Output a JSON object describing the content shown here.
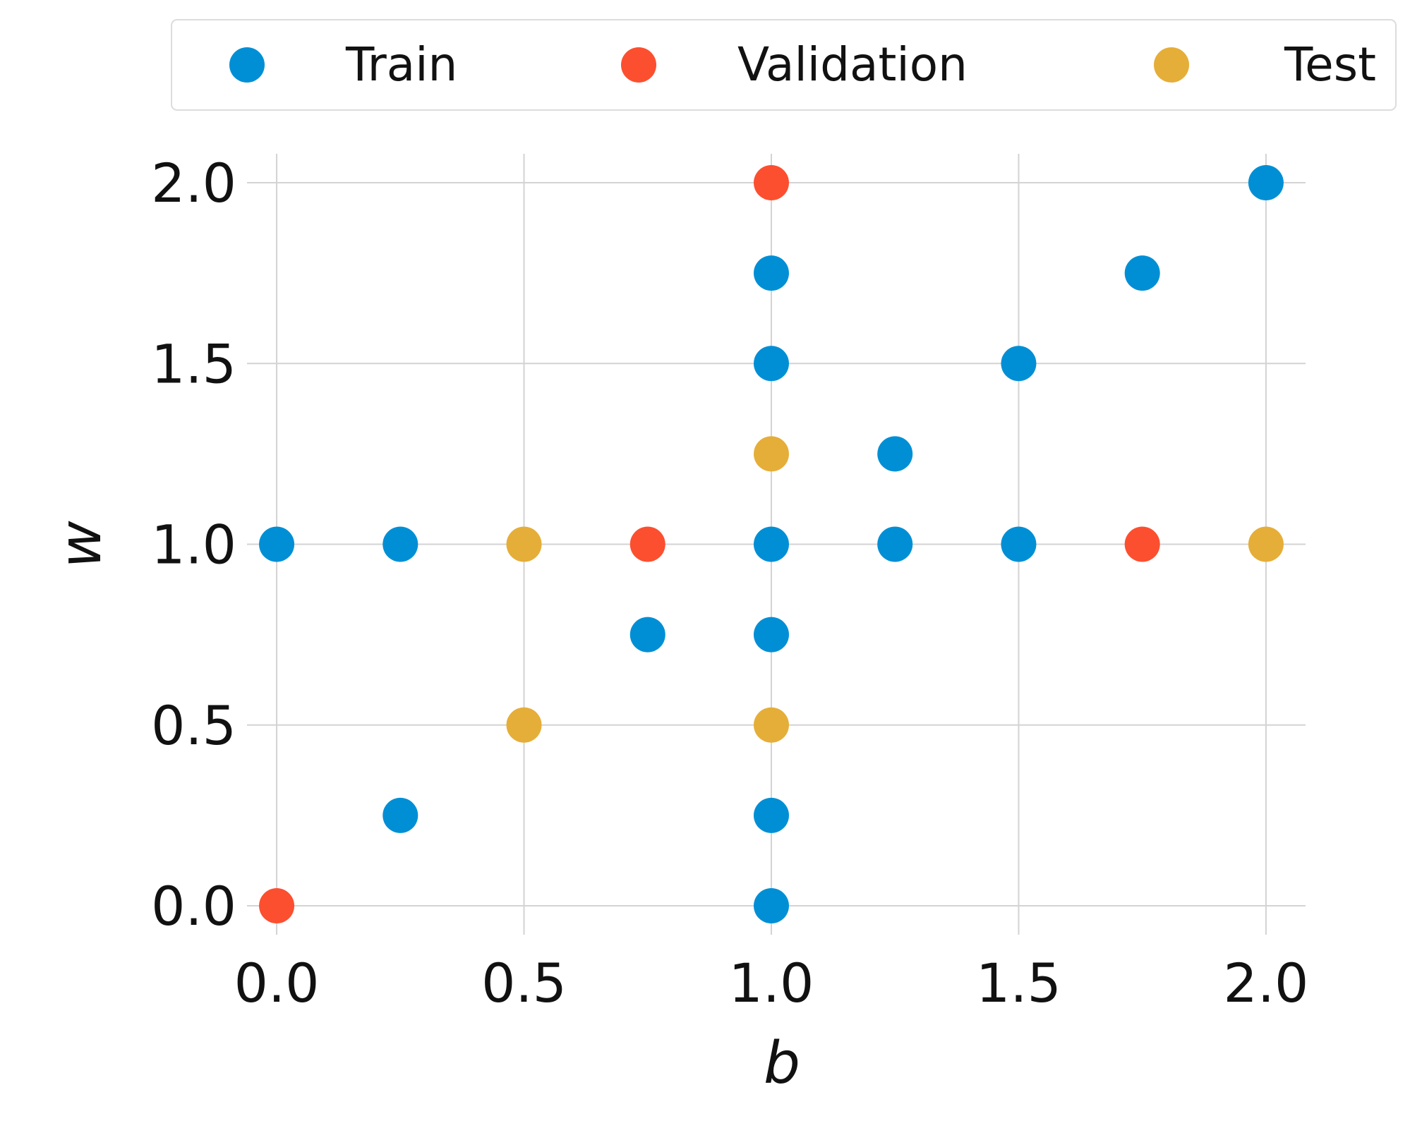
{
  "chart_data": {
    "type": "scatter",
    "title": "",
    "xlabel": "b",
    "ylabel": "w",
    "xlim": [
      -0.06,
      2.08
    ],
    "ylim": [
      -0.08,
      2.08
    ],
    "xticks": [
      0.0,
      0.5,
      1.0,
      1.5,
      2.0
    ],
    "yticks": [
      0.0,
      0.5,
      1.0,
      1.5,
      2.0
    ],
    "xtick_labels": [
      "0.0",
      "0.5",
      "1.0",
      "1.5",
      "2.0"
    ],
    "ytick_labels": [
      "0.0",
      "0.5",
      "1.0",
      "1.5",
      "2.0"
    ],
    "grid": true,
    "legend_position": "top",
    "series": [
      {
        "name": "Train",
        "color": "#008fd5",
        "points": [
          {
            "b": 0.0,
            "w": 1.0
          },
          {
            "b": 0.25,
            "w": 1.0
          },
          {
            "b": 0.25,
            "w": 0.25
          },
          {
            "b": 0.75,
            "w": 0.75
          },
          {
            "b": 1.0,
            "w": 1.75
          },
          {
            "b": 1.0,
            "w": 1.5
          },
          {
            "b": 1.0,
            "w": 1.0
          },
          {
            "b": 1.0,
            "w": 0.75
          },
          {
            "b": 1.0,
            "w": 0.25
          },
          {
            "b": 1.0,
            "w": 0.0
          },
          {
            "b": 1.25,
            "w": 1.25
          },
          {
            "b": 1.25,
            "w": 1.0
          },
          {
            "b": 1.5,
            "w": 1.5
          },
          {
            "b": 1.5,
            "w": 1.0
          },
          {
            "b": 1.75,
            "w": 1.75
          },
          {
            "b": 2.0,
            "w": 2.0
          }
        ]
      },
      {
        "name": "Validation",
        "color": "#fc4f30",
        "points": [
          {
            "b": 1.0,
            "w": 2.0
          },
          {
            "b": 0.75,
            "w": 1.0
          },
          {
            "b": 1.75,
            "w": 1.0
          },
          {
            "b": 0.0,
            "w": 0.0
          }
        ]
      },
      {
        "name": "Test",
        "color": "#e5ae38",
        "points": [
          {
            "b": 1.0,
            "w": 1.25
          },
          {
            "b": 0.5,
            "w": 1.0
          },
          {
            "b": 2.0,
            "w": 1.0
          },
          {
            "b": 0.5,
            "w": 0.5
          },
          {
            "b": 1.0,
            "w": 0.5
          }
        ]
      }
    ]
  }
}
